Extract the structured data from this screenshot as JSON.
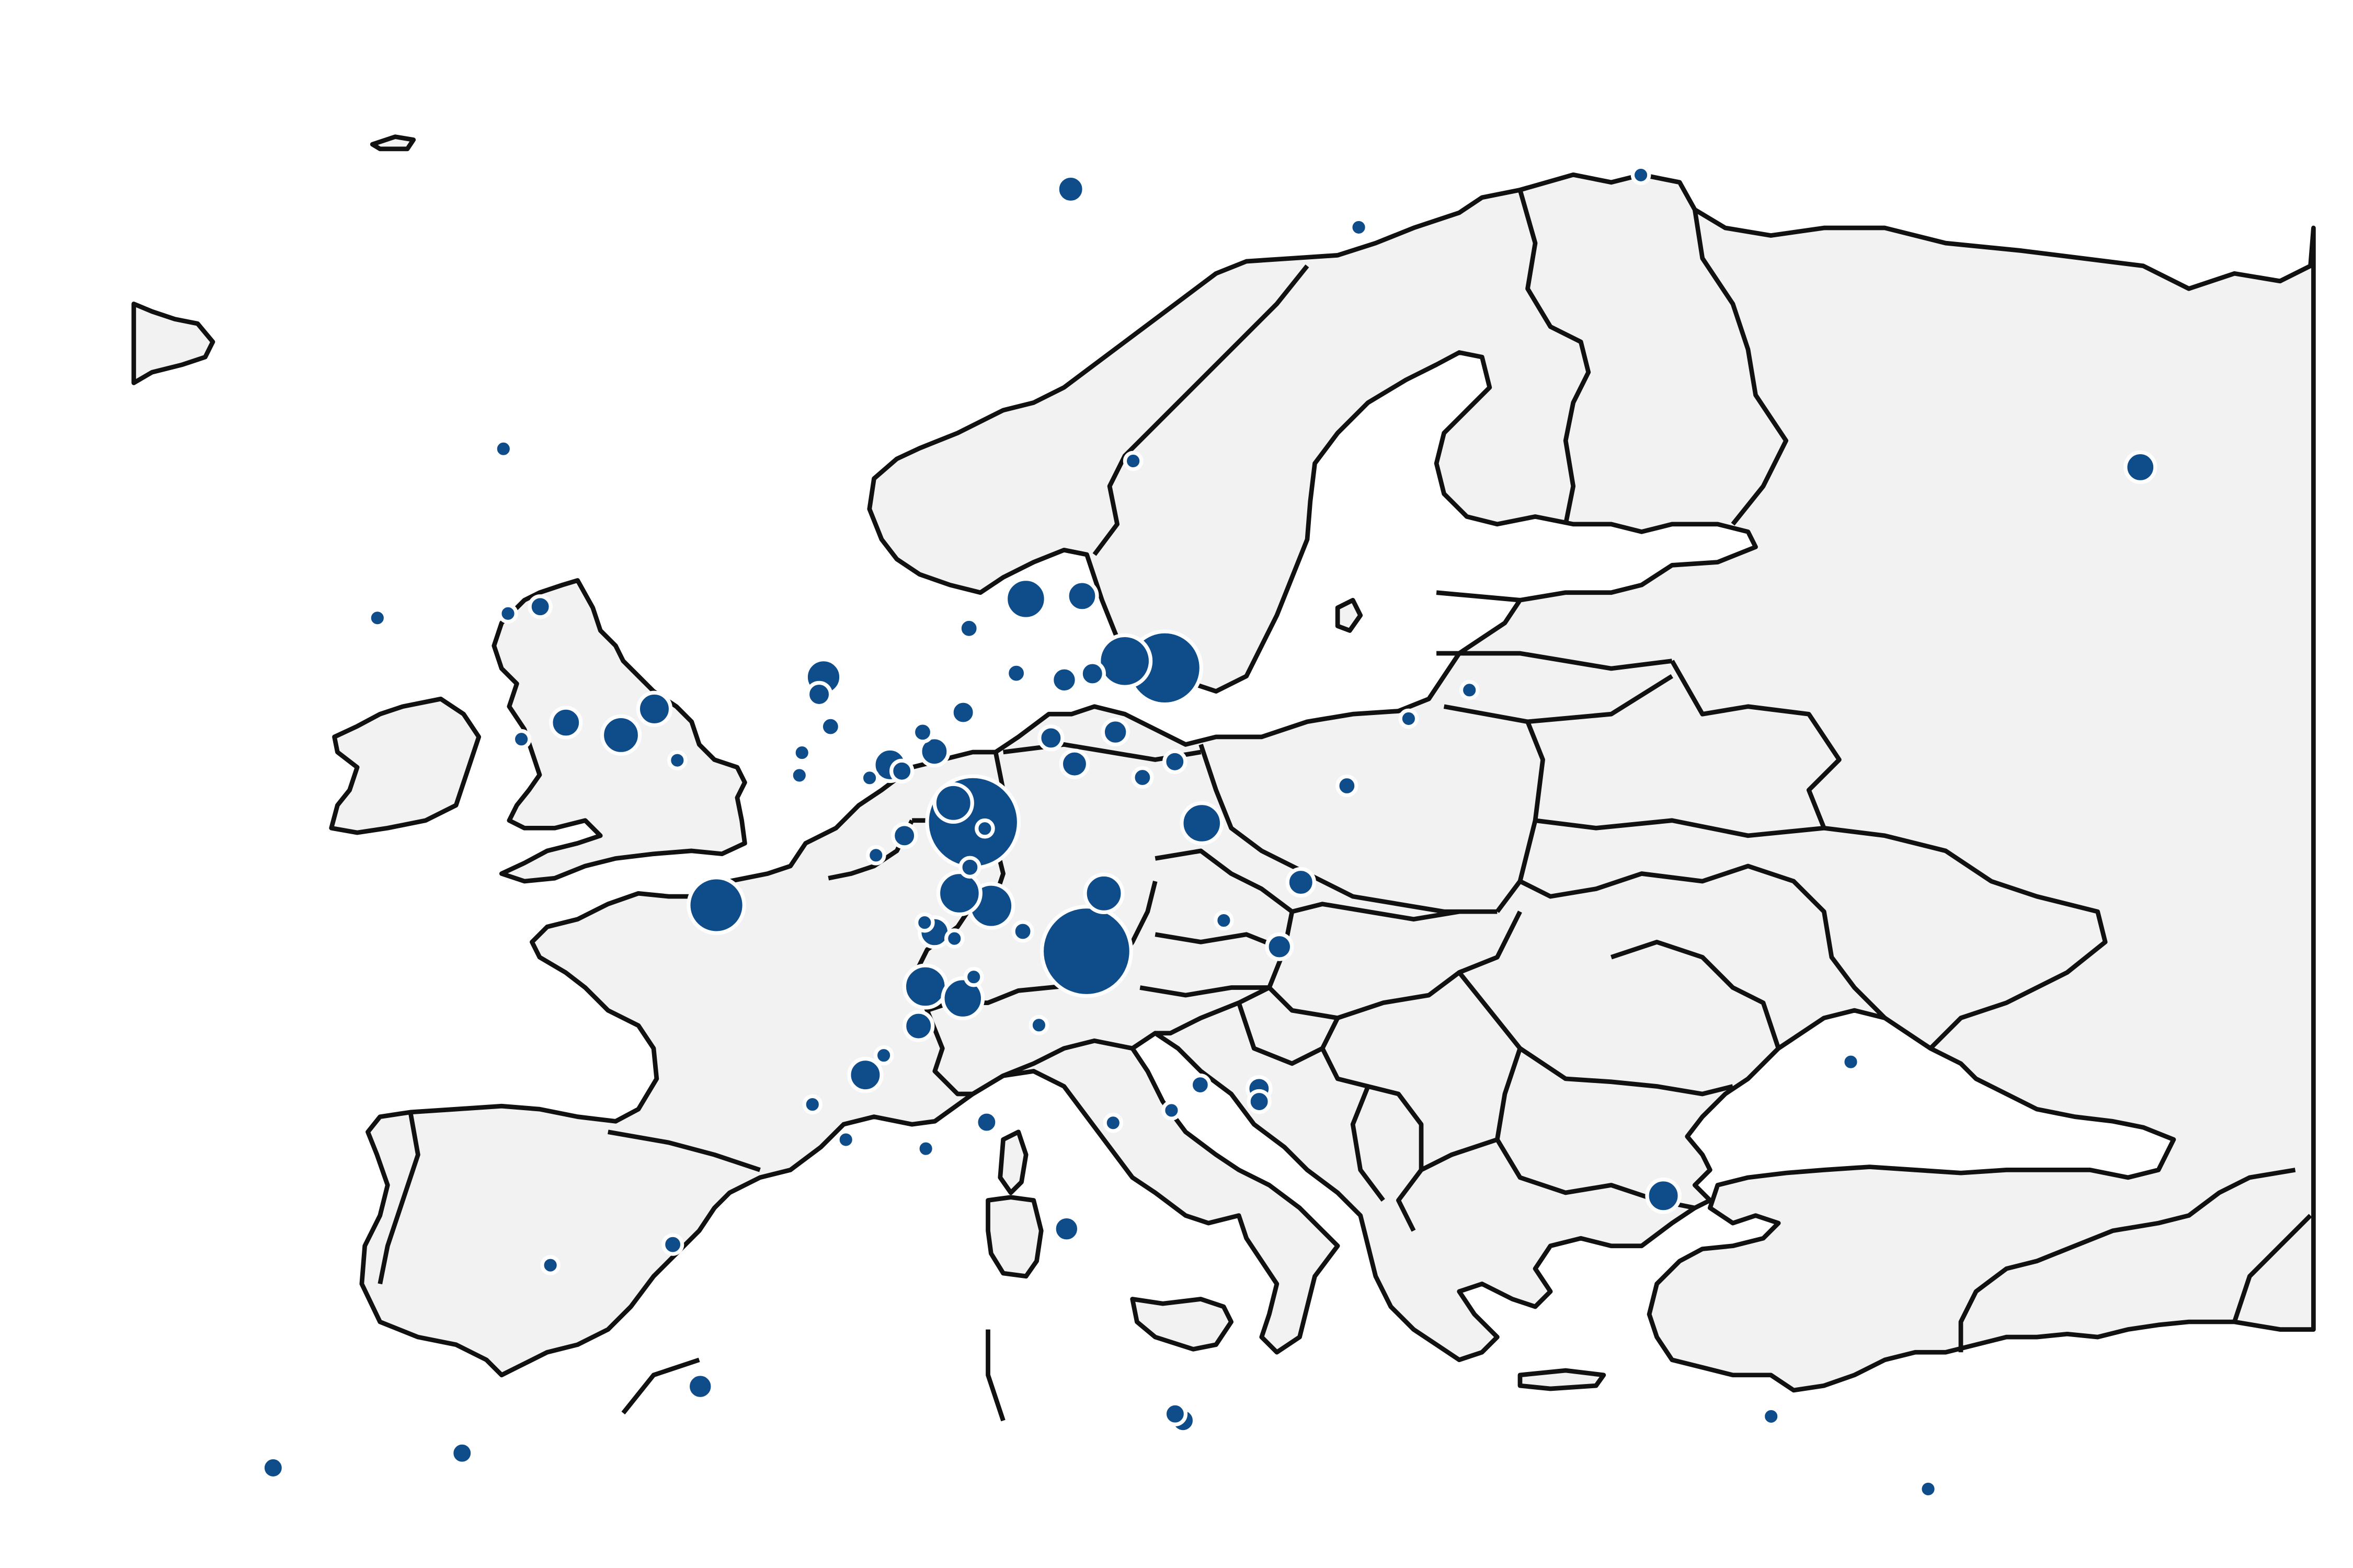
{
  "map": {
    "projection": "europe-basemap",
    "basemap": {
      "land_color": "#f2f2f2",
      "border_color": "#111111",
      "background": "#ffffff"
    },
    "bubble_style": {
      "fill": "#0e4c8a",
      "stroke": "#ffffff"
    },
    "locations": [
      {
        "lon": 8.7,
        "lat": 50.1,
        "value": 95
      },
      {
        "lon": 11.6,
        "lat": 48.1,
        "value": 90
      },
      {
        "lon": 13.4,
        "lat": 52.5,
        "value": 60
      },
      {
        "lon": 2.35,
        "lat": 48.85,
        "value": 35
      },
      {
        "lon": 12.4,
        "lat": 52.6,
        "value": 30
      },
      {
        "lon": 9.9,
        "lat": 53.55,
        "value": 18
      },
      {
        "lon": 9.2,
        "lat": 48.8,
        "value": 22
      },
      {
        "lon": 8.4,
        "lat": 49.0,
        "value": 20
      },
      {
        "lon": 7.6,
        "lat": 47.56,
        "value": 20
      },
      {
        "lon": 8.54,
        "lat": 47.37,
        "value": 18
      },
      {
        "lon": 14.4,
        "lat": 50.1,
        "value": 18
      },
      {
        "lon": 8.2,
        "lat": 50.4,
        "value": 16
      },
      {
        "lon": 12.0,
        "lat": 49.0,
        "value": 16
      },
      {
        "lon": -0.12,
        "lat": 51.5,
        "value": 16
      },
      {
        "lon": 4.9,
        "lat": 52.37,
        "value": 14
      },
      {
        "lon": 0.7,
        "lat": 51.9,
        "value": 12
      },
      {
        "lon": 26.1,
        "lat": 44.4,
        "value": 12
      },
      {
        "lon": 37.6,
        "lat": 55.75,
        "value": 10
      },
      {
        "lon": 6.6,
        "lat": 51.0,
        "value": 12
      },
      {
        "lon": 11.3,
        "lat": 53.6,
        "value": 10
      },
      {
        "lon": -1.5,
        "lat": 51.7,
        "value": 10
      },
      {
        "lon": 10.8,
        "lat": 59.9,
        "value": 8
      },
      {
        "lon": 6.15,
        "lat": 46.2,
        "value": 12
      },
      {
        "lon": 7.8,
        "lat": 48.4,
        "value": 10
      },
      {
        "lon": 7.45,
        "lat": 46.95,
        "value": 9
      },
      {
        "lon": 7.7,
        "lat": 51.2,
        "value": 9
      },
      {
        "lon": 11.2,
        "lat": 51.0,
        "value": 8
      },
      {
        "lon": 12.2,
        "lat": 51.5,
        "value": 7
      },
      {
        "lon": 16.9,
        "lat": 49.2,
        "value": 8
      },
      {
        "lon": 10.9,
        "lat": 52.3,
        "value": 7
      },
      {
        "lon": 10.6,
        "lat": 51.4,
        "value": 6
      },
      {
        "lon": 8.4,
        "lat": 51.8,
        "value": 6
      },
      {
        "lon": 11.6,
        "lat": 52.4,
        "value": 6
      },
      {
        "lon": 7.0,
        "lat": 49.9,
        "value": 6
      },
      {
        "lon": 2.2,
        "lat": 41.4,
        "value": 7
      },
      {
        "lon": -3.7,
        "lat": 40.4,
        "value": 5
      },
      {
        "lon": -8.4,
        "lat": 40.2,
        "value": 5
      },
      {
        "lon": 11.25,
        "lat": 43.8,
        "value": 7
      },
      {
        "lon": 14.25,
        "lat": 40.85,
        "value": 6
      },
      {
        "lon": 14.05,
        "lat": 40.95,
        "value": 5
      },
      {
        "lon": 15.98,
        "lat": 45.8,
        "value": 5
      },
      {
        "lon": 15.97,
        "lat": 46.0,
        "value": 6
      },
      {
        "lon": 16.4,
        "lat": 48.2,
        "value": 7
      },
      {
        "lon": 9.2,
        "lat": 45.45,
        "value": 5
      },
      {
        "lon": -2.2,
        "lat": 53.5,
        "value": 5
      },
      {
        "lon": 4.8,
        "lat": 52.1,
        "value": 6
      },
      {
        "lon": 14.5,
        "lat": 46.05,
        "value": 4
      },
      {
        "lon": 28.9,
        "lat": 41.0,
        "value": 3
      },
      {
        "lon": 32.85,
        "lat": 39.9,
        "value": 3
      },
      {
        "lon": 30.7,
        "lat": 46.5,
        "value": 3
      },
      {
        "lon": 25.0,
        "lat": 60.2,
        "value": 3
      },
      {
        "lon": 18.0,
        "lat": 59.35,
        "value": 3
      },
      {
        "lon": 12.5,
        "lat": 55.7,
        "value": 3
      },
      {
        "lon": 21.0,
        "lat": 52.2,
        "value": 3
      },
      {
        "lon": 19.5,
        "lat": 51.75,
        "value": 3
      },
      {
        "lon": 18.0,
        "lat": 50.7,
        "value": 4
      },
      {
        "lon": 8.5,
        "lat": 53.1,
        "value": 4
      },
      {
        "lon": 5.1,
        "lat": 51.6,
        "value": 4
      },
      {
        "lon": 4.4,
        "lat": 51.2,
        "value": 3
      },
      {
        "lon": 6.1,
        "lat": 50.8,
        "value": 3
      },
      {
        "lon": 6.9,
        "lat": 50.9,
        "value": 5
      },
      {
        "lon": 7.4,
        "lat": 51.5,
        "value": 4
      },
      {
        "lon": 9.7,
        "lat": 52.4,
        "value": 4
      },
      {
        "lon": 13.7,
        "lat": 51.05,
        "value": 5
      },
      {
        "lon": 12.9,
        "lat": 50.8,
        "value": 4
      },
      {
        "lon": 8.8,
        "lat": 47.7,
        "value": 3
      },
      {
        "lon": 10.0,
        "lat": 48.4,
        "value": 4
      },
      {
        "lon": 12.35,
        "lat": 45.45,
        "value": 3
      },
      {
        "lon": 13.8,
        "lat": 45.65,
        "value": 3
      },
      {
        "lon": 7.7,
        "lat": 45.05,
        "value": 3
      },
      {
        "lon": 5.7,
        "lat": 45.2,
        "value": 3
      },
      {
        "lon": 6.6,
        "lat": 46.5,
        "value": 3
      },
      {
        "lon": 4.85,
        "lat": 45.75,
        "value": 3
      },
      {
        "lon": 1.44,
        "lat": 43.6,
        "value": 4
      },
      {
        "lon": -1.6,
        "lat": 43.3,
        "value": 3
      },
      {
        "lon": -3.2,
        "lat": 55.95,
        "value": 3
      },
      {
        "lon": -2.6,
        "lat": 51.45,
        "value": 3
      },
      {
        "lon": -6.25,
        "lat": 53.35,
        "value": 3
      },
      {
        "lon": -3.0,
        "lat": 53.4,
        "value": 3
      },
      {
        "lon": 1.3,
        "lat": 51.1,
        "value": 3
      },
      {
        "lon": 4.35,
        "lat": 50.85,
        "value": 3
      },
      {
        "lon": 6.3,
        "lat": 49.6,
        "value": 3
      },
      {
        "lon": 9.0,
        "lat": 50.0,
        "value": 3
      },
      {
        "lon": 8.65,
        "lat": 49.4,
        "value": 4
      },
      {
        "lon": 8.3,
        "lat": 48.3,
        "value": 3
      },
      {
        "lon": 10.45,
        "lat": 46.95,
        "value": 3
      },
      {
        "lon": 7.55,
        "lat": 48.55,
        "value": 3
      },
      {
        "lon": 15.0,
        "lat": 48.6,
        "value": 3
      }
    ]
  }
}
